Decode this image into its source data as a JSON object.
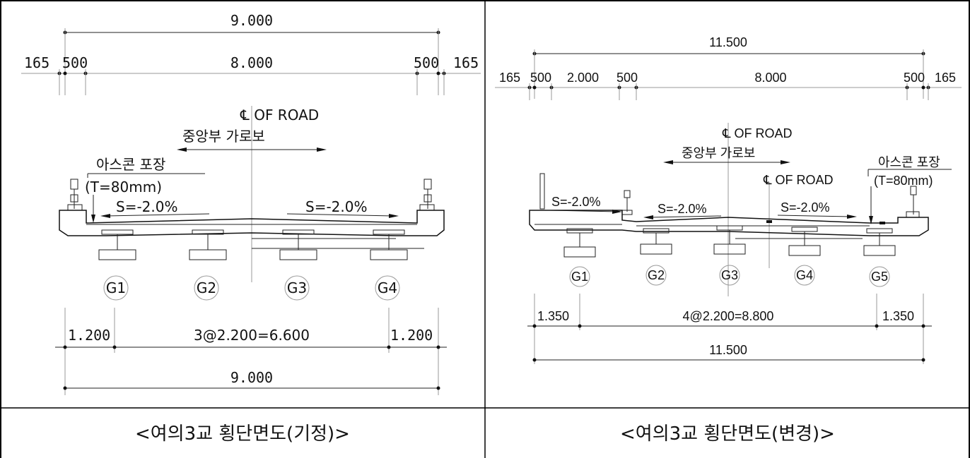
{
  "left": {
    "top_total": "9.000",
    "curb_outer_left": "165",
    "curb_left": "500",
    "roadway": "8.000",
    "curb_right": "500",
    "curb_outer_right": "165",
    "centerline": "℄ OF ROAD",
    "cross_beam": "중앙부  가로보",
    "pavement": "아스콘 포장",
    "pavement_t": "(T=80mm)",
    "slope_left": "S=-2.0%",
    "slope_right": "S=-2.0%",
    "girders": [
      "G1",
      "G2",
      "G3",
      "G4"
    ],
    "bottom_left": "1.200",
    "bottom_mid": "3@2.200=6.600",
    "bottom_right": "1.200",
    "bottom_total": "9.000",
    "caption": "<여의3교 횡단면도(기정)>"
  },
  "right": {
    "top_total": "11.500",
    "d1": "165",
    "d2": "500",
    "d3": "2.000",
    "d4": "500",
    "d5": "8.000",
    "d6": "500",
    "d7": "165",
    "centerline_top": "℄ OF ROAD",
    "cross_beam": "중앙부  가로보",
    "centerline_mid": "℄ OF ROAD",
    "pavement": "아스콘 포장",
    "pavement_t": "(T=80mm)",
    "slope_1": "S=-2.0%",
    "slope_2": "S=-2.0%",
    "slope_3": "S=-2.0%",
    "girders": [
      "G1",
      "G2",
      "G3",
      "G4",
      "G5"
    ],
    "bottom_left": "1.350",
    "bottom_mid": "4@2.200=8.800",
    "bottom_right": "1.350",
    "bottom_total": "11.500",
    "caption": "<여의3교 횡단면도(변경)>"
  }
}
